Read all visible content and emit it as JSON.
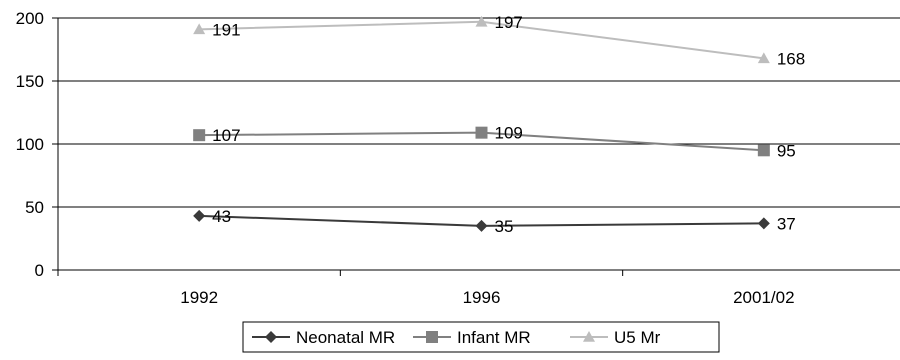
{
  "chart_data": {
    "type": "line",
    "categories": [
      "1992",
      "1996",
      "2001/02"
    ],
    "series": [
      {
        "name": "Neonatal MR",
        "values": [
          43,
          35,
          37
        ],
        "color": "#3a3a3a",
        "marker": "diamond"
      },
      {
        "name": "Infant MR",
        "values": [
          107,
          109,
          95
        ],
        "color": "#808080",
        "marker": "square"
      },
      {
        "name": "U5 Mr",
        "values": [
          191,
          197,
          168
        ],
        "color": "#bdbdbd",
        "marker": "triangle"
      }
    ],
    "y_ticks": [
      "0",
      "50",
      "100",
      "150",
      "200"
    ],
    "ylim": [
      0,
      200
    ],
    "grid": "horizontal",
    "legend": "bottom-center",
    "title": "",
    "xlabel": "",
    "ylabel": ""
  }
}
